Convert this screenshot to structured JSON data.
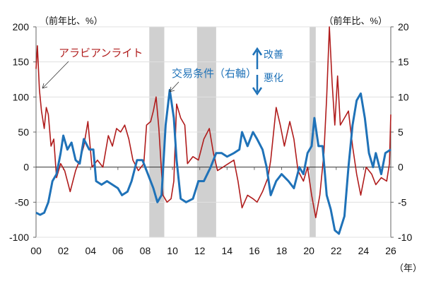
{
  "chart_data": {
    "type": "line",
    "title": "",
    "left_unit": "（前年比、%）",
    "right_unit": "（前年比、%）",
    "x_unit": "（年）",
    "xlim": [
      2000,
      2026
    ],
    "ylim_left": [
      -100,
      200
    ],
    "ylim_right": [
      -10,
      20
    ],
    "left_ticks": [
      "-100",
      "-50",
      "0",
      "50",
      "100",
      "150",
      "200"
    ],
    "left_tick_values": [
      -100,
      -50,
      0,
      50,
      100,
      150,
      200
    ],
    "right_ticks": [
      "-10",
      "-5",
      "0",
      "5",
      "10",
      "15",
      "20"
    ],
    "right_tick_values": [
      -10,
      -5,
      0,
      5,
      10,
      15,
      20
    ],
    "x_ticks": [
      "00",
      "02",
      "04",
      "06",
      "08",
      "10",
      "12",
      "14",
      "16",
      "18",
      "20",
      "22",
      "24",
      "26"
    ],
    "x_tick_values": [
      2000,
      2002,
      2004,
      2006,
      2008,
      2010,
      2012,
      2014,
      2016,
      2018,
      2020,
      2022,
      2024,
      2026
    ],
    "shaded_periods": [
      [
        2008.3,
        2009.4
      ],
      [
        2011.8,
        2013.2
      ],
      [
        2020.05,
        2020.5
      ]
    ],
    "annotations": {
      "improve": "改善",
      "worsen": "悪化"
    },
    "series": [
      {
        "name": "アラビアンライト",
        "axis": "left",
        "color": "#b01c1c",
        "x": [
          2000.0,
          2000.1,
          2000.25,
          2000.4,
          2000.6,
          2000.75,
          2000.9,
          2001.1,
          2001.3,
          2001.5,
          2001.8,
          2002.1,
          2002.5,
          2002.9,
          2003.2,
          2003.5,
          2003.8,
          2004.1,
          2004.5,
          2004.9,
          2005.3,
          2005.6,
          2005.9,
          2006.2,
          2006.5,
          2006.8,
          2007.1,
          2007.5,
          2007.9,
          2008.1,
          2008.4,
          2008.6,
          2008.8,
          2009.0,
          2009.3,
          2009.6,
          2009.9,
          2010.1,
          2010.3,
          2010.6,
          2010.9,
          2011.1,
          2011.5,
          2011.9,
          2012.3,
          2012.7,
          2013.0,
          2013.3,
          2013.7,
          2014.1,
          2014.5,
          2014.8,
          2015.1,
          2015.5,
          2015.9,
          2016.2,
          2016.6,
          2017.0,
          2017.2,
          2017.6,
          2017.9,
          2018.2,
          2018.6,
          2018.9,
          2019.2,
          2019.6,
          2019.9,
          2020.2,
          2020.5,
          2020.8,
          2021.1,
          2021.3,
          2021.5,
          2021.7,
          2021.9,
          2022.1,
          2022.3,
          2022.6,
          2022.9,
          2023.2,
          2023.5,
          2023.8,
          2024.2,
          2024.6,
          2024.9,
          2025.3,
          2025.7,
          2025.9,
          2026.0
        ],
        "values": [
          140,
          173,
          110,
          80,
          55,
          85,
          75,
          30,
          40,
          -15,
          5,
          -5,
          -35,
          -5,
          10,
          30,
          65,
          0,
          10,
          0,
          45,
          30,
          55,
          50,
          60,
          40,
          10,
          -5,
          5,
          60,
          65,
          80,
          100,
          55,
          -40,
          -50,
          -45,
          -20,
          90,
          70,
          60,
          5,
          15,
          10,
          40,
          55,
          20,
          -5,
          0,
          5,
          10,
          -20,
          -58,
          -40,
          -45,
          -50,
          -35,
          -15,
          10,
          85,
          60,
          30,
          65,
          40,
          -5,
          -20,
          0,
          -40,
          -72,
          -40,
          20,
          100,
          200,
          120,
          60,
          130,
          60,
          70,
          80,
          30,
          -10,
          -40,
          0,
          -10,
          -25,
          -15,
          -20,
          5,
          75
        ]
      },
      {
        "name": "交易条件（右軸）",
        "axis": "right",
        "color": "#1f72b8",
        "x": [
          2000.0,
          2000.3,
          2000.6,
          2000.9,
          2001.2,
          2001.5,
          2001.8,
          2002.0,
          2002.3,
          2002.6,
          2002.9,
          2003.2,
          2003.5,
          2003.9,
          2004.2,
          2004.4,
          2004.8,
          2005.2,
          2005.6,
          2006.0,
          2006.3,
          2006.7,
          2007.0,
          2007.4,
          2007.8,
          2008.2,
          2008.6,
          2008.9,
          2009.2,
          2009.5,
          2009.8,
          2010.1,
          2010.3,
          2010.6,
          2011.0,
          2011.5,
          2011.9,
          2012.3,
          2012.8,
          2013.2,
          2013.6,
          2014.0,
          2014.5,
          2014.9,
          2015.1,
          2015.5,
          2015.9,
          2016.2,
          2016.6,
          2016.9,
          2017.2,
          2017.6,
          2018.0,
          2018.5,
          2018.9,
          2019.3,
          2019.6,
          2019.9,
          2020.2,
          2020.4,
          2020.7,
          2021.0,
          2021.3,
          2021.6,
          2021.9,
          2022.2,
          2022.6,
          2022.9,
          2023.2,
          2023.5,
          2023.8,
          2024.1,
          2024.4,
          2024.7,
          2024.9,
          2025.3,
          2025.6,
          2026.0
        ],
        "values": [
          -6.5,
          -6.8,
          -6.5,
          -5,
          -2,
          -1,
          2,
          4.5,
          2.5,
          3.5,
          1,
          0.5,
          4,
          2.5,
          2.5,
          -2,
          -2.5,
          -2,
          -2.5,
          -3,
          -4,
          -3.5,
          -2,
          1,
          1,
          -1,
          -3,
          -5,
          -4,
          6,
          11,
          7,
          1,
          -4.5,
          -5,
          -4.5,
          -2,
          -2,
          0,
          2,
          2,
          1.5,
          2,
          2.5,
          5,
          3,
          5,
          4,
          2.5,
          0,
          -4,
          -2,
          -1,
          -2,
          -3,
          0,
          -1,
          2,
          3,
          7,
          3,
          3,
          -4,
          -6,
          -9,
          -9.5,
          -7,
          0,
          6,
          9.5,
          10.5,
          7,
          2,
          0,
          2,
          -1,
          2,
          2.5
        ]
      }
    ]
  }
}
